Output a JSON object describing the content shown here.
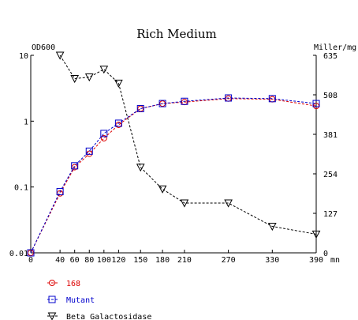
{
  "chart_data": {
    "type": "line",
    "title": "Rich Medium",
    "left_axis": {
      "label": "OD600",
      "scale": "log",
      "ylim": [
        0.01,
        10
      ],
      "ticks": [
        10,
        1,
        0.1,
        0.01
      ],
      "tick_labels": [
        "10",
        "1",
        "0.1",
        "0.01"
      ]
    },
    "right_axis": {
      "label": "Miller/mg",
      "scale": "linear",
      "ylim": [
        0,
        635
      ],
      "ticks": [
        0,
        127,
        254,
        381,
        508,
        635
      ],
      "tick_labels": [
        "0",
        "127",
        "254",
        "381",
        "508",
        "635"
      ]
    },
    "x_axis": {
      "unit": "mn",
      "xlim": [
        0,
        390
      ],
      "ticks": [
        0,
        40,
        60,
        80,
        100,
        120,
        150,
        180,
        210,
        270,
        330,
        390
      ],
      "tick_labels": [
        "0",
        "40",
        "60",
        "80",
        "100",
        "120",
        "150",
        "180",
        "210",
        "270",
        "330",
        "390"
      ]
    },
    "series": [
      {
        "name": "168",
        "axis": "left",
        "color": "#dd0000",
        "marker": "circle",
        "x": [
          0,
          40,
          60,
          80,
          100,
          120,
          150,
          180,
          210,
          270,
          330,
          390
        ],
        "y": [
          0.01,
          0.08,
          0.2,
          0.32,
          0.55,
          0.88,
          1.55,
          1.85,
          1.95,
          2.2,
          2.15,
          1.7
        ]
      },
      {
        "name": "Mutant",
        "axis": "left",
        "color": "#0000cc",
        "marker": "square",
        "x": [
          0,
          40,
          60,
          80,
          100,
          120,
          150,
          180,
          210,
          270,
          330,
          390
        ],
        "y": [
          0.01,
          0.085,
          0.21,
          0.35,
          0.65,
          0.93,
          1.55,
          1.85,
          2.0,
          2.25,
          2.2,
          1.85
        ]
      },
      {
        "name": "Beta Galactosidase",
        "axis": "right",
        "color": "#000000",
        "marker": "triangle-down",
        "x": [
          40,
          60,
          80,
          100,
          120,
          150,
          180,
          210,
          270,
          330,
          390
        ],
        "y": [
          635,
          560,
          565,
          590,
          545,
          275,
          205,
          160,
          160,
          85,
          60
        ]
      }
    ],
    "legend_position": "bottom-left",
    "grid": false
  }
}
